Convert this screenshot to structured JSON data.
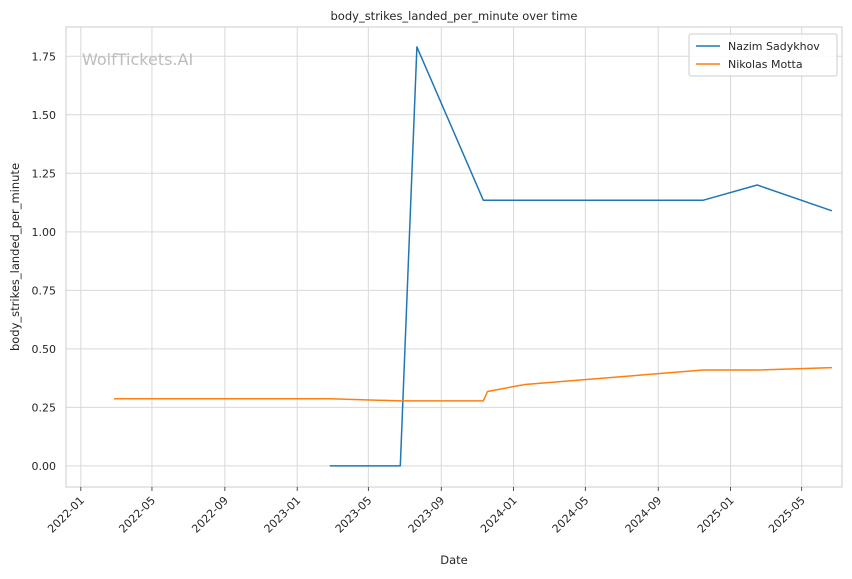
{
  "chart_data": {
    "type": "line",
    "title": "body_strikes_landed_per_minute over time",
    "xlabel": "Date",
    "ylabel": "body_strikes_landed_per_minute",
    "watermark": "WolfTickets.AI",
    "grid": true,
    "legend_position": "top-right",
    "xlim": [
      "2021-12-07",
      "2025-07-08"
    ],
    "ylim": [
      -0.09,
      1.875
    ],
    "x_ticks": [
      "2022-01",
      "2022-05",
      "2022-09",
      "2023-01",
      "2023-05",
      "2023-09",
      "2024-01",
      "2024-05",
      "2024-09",
      "2025-01",
      "2025-05"
    ],
    "y_ticks": [
      "0.00",
      "0.25",
      "0.50",
      "0.75",
      "1.00",
      "1.25",
      "1.50",
      "1.75"
    ],
    "series": [
      {
        "name": "Nazim Sadykhov",
        "color": "#1f77b4",
        "points": [
          {
            "x": "2023-02-25",
            "y": 0.0
          },
          {
            "x": "2023-06-24",
            "y": 0.0
          },
          {
            "x": "2023-07-22",
            "y": 1.79
          },
          {
            "x": "2023-11-11",
            "y": 1.135
          },
          {
            "x": "2024-11-16",
            "y": 1.135
          },
          {
            "x": "2025-02-15",
            "y": 1.2
          },
          {
            "x": "2025-06-21",
            "y": 1.09
          }
        ]
      },
      {
        "name": "Nikolas Motta",
        "color": "#ff7f0e",
        "points": [
          {
            "x": "2022-02-26",
            "y": 0.287
          },
          {
            "x": "2023-02-25",
            "y": 0.287
          },
          {
            "x": "2023-06-24",
            "y": 0.278
          },
          {
            "x": "2023-11-11",
            "y": 0.278
          },
          {
            "x": "2023-11-18",
            "y": 0.318
          },
          {
            "x": "2024-01-20",
            "y": 0.348
          },
          {
            "x": "2024-11-16",
            "y": 0.41
          },
          {
            "x": "2025-02-15",
            "y": 0.41
          },
          {
            "x": "2025-06-21",
            "y": 0.42
          }
        ]
      }
    ]
  }
}
